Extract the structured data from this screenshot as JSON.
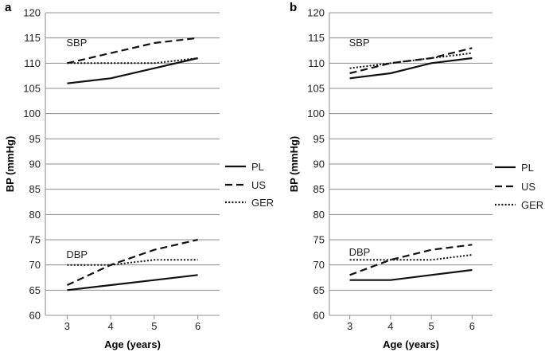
{
  "chart_data": [
    {
      "panel": "a",
      "type": "line",
      "xlabel": "Age (years)",
      "ylabel": "BP (mmHg)",
      "x": [
        3,
        4,
        5,
        6
      ],
      "ylim": [
        60,
        120
      ],
      "yticks": [
        60,
        65,
        70,
        75,
        80,
        85,
        90,
        95,
        100,
        105,
        110,
        115,
        120
      ],
      "grid": true,
      "annotations": [
        {
          "text": "SBP",
          "x": 3,
          "y": 114
        },
        {
          "text": "DBP",
          "x": 3,
          "y": 72
        }
      ],
      "series": [
        {
          "name": "PL",
          "group": "SBP",
          "style": "solid",
          "values": [
            106,
            107,
            109,
            111
          ]
        },
        {
          "name": "US",
          "group": "SBP",
          "style": "dashed",
          "values": [
            110,
            112,
            114,
            115
          ]
        },
        {
          "name": "GER",
          "group": "SBP",
          "style": "dotted",
          "values": [
            110,
            110,
            110,
            111
          ]
        },
        {
          "name": "PL",
          "group": "DBP",
          "style": "solid",
          "values": [
            65,
            66,
            67,
            68
          ]
        },
        {
          "name": "US",
          "group": "DBP",
          "style": "dashed",
          "values": [
            66,
            70,
            73,
            75
          ]
        },
        {
          "name": "GER",
          "group": "DBP",
          "style": "dotted",
          "values": [
            70,
            70,
            71,
            71
          ]
        }
      ],
      "legend": [
        {
          "label": "PL",
          "style": "solid"
        },
        {
          "label": "US",
          "style": "dashed"
        },
        {
          "label": "GER",
          "style": "dotted"
        }
      ]
    },
    {
      "panel": "b",
      "type": "line",
      "xlabel": "Age (years)",
      "ylabel": "BP (mmHg)",
      "x": [
        3,
        4,
        5,
        6
      ],
      "ylim": [
        60,
        120
      ],
      "yticks": [
        60,
        65,
        70,
        75,
        80,
        85,
        90,
        95,
        100,
        105,
        110,
        115,
        120
      ],
      "grid": true,
      "annotations": [
        {
          "text": "SBP",
          "x": 3,
          "y": 114
        },
        {
          "text": "DBP",
          "x": 3,
          "y": 72.5
        }
      ],
      "series": [
        {
          "name": "PL",
          "group": "SBP",
          "style": "solid",
          "values": [
            107,
            108,
            110,
            111
          ]
        },
        {
          "name": "US",
          "group": "SBP",
          "style": "dashed",
          "values": [
            108,
            110,
            111,
            113
          ]
        },
        {
          "name": "GER",
          "group": "SBP",
          "style": "dotted",
          "values": [
            109,
            110,
            111,
            112
          ]
        },
        {
          "name": "PL",
          "group": "DBP",
          "style": "solid",
          "values": [
            67,
            67,
            68,
            69
          ]
        },
        {
          "name": "US",
          "group": "DBP",
          "style": "dashed",
          "values": [
            68,
            71,
            73,
            74
          ]
        },
        {
          "name": "GER",
          "group": "DBP",
          "style": "dotted",
          "values": [
            71,
            71,
            71,
            72
          ]
        }
      ],
      "legend": [
        {
          "label": "PL",
          "style": "solid"
        },
        {
          "label": "US",
          "style": "dashed"
        },
        {
          "label": "GER",
          "style": "dotted"
        }
      ]
    }
  ]
}
